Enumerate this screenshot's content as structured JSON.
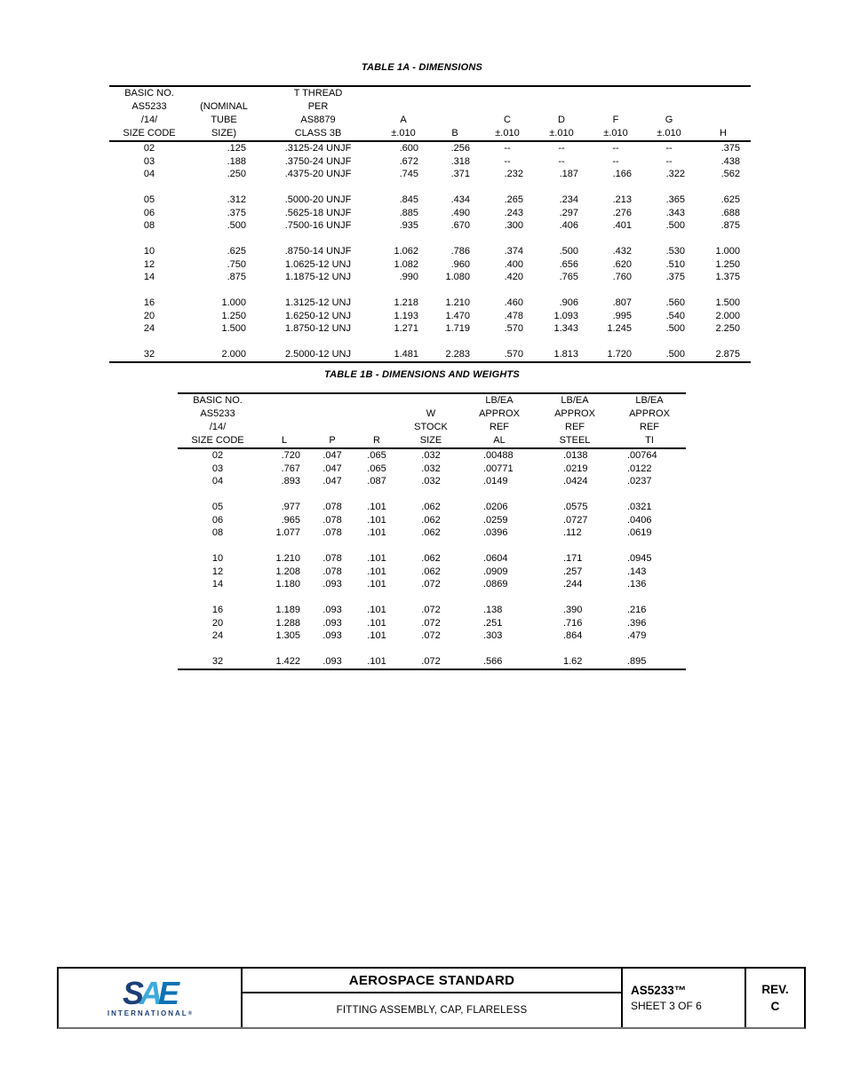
{
  "table1a": {
    "title": "TABLE 1A - DIMENSIONS",
    "headers": [
      [
        "BASIC NO.",
        "AS5233",
        "/14/",
        "SIZE CODE"
      ],
      [
        "(NOMINAL",
        "TUBE",
        "SIZE)"
      ],
      [
        "T THREAD",
        "PER",
        "AS8879",
        "CLASS 3B"
      ],
      [
        "A",
        "±.010"
      ],
      [
        "B"
      ],
      [
        "C",
        "±.010"
      ],
      [
        "D",
        "±.010"
      ],
      [
        "F",
        "±.010"
      ],
      [
        "G",
        "±.010"
      ],
      [
        "H"
      ]
    ],
    "rows": [
      [
        "02",
        ".125",
        ".3125-24 UNJF",
        ".600",
        ".256",
        "--",
        "--",
        "--",
        "--",
        ".375"
      ],
      [
        "03",
        ".188",
        ".3750-24 UNJF",
        ".672",
        ".318",
        "--",
        "--",
        "--",
        "--",
        ".438"
      ],
      [
        "04",
        ".250",
        ".4375-20 UNJF",
        ".745",
        ".371",
        ".232",
        ".187",
        ".166",
        ".322",
        ".562"
      ],
      [],
      [
        "05",
        ".312",
        ".5000-20 UNJF",
        ".845",
        ".434",
        ".265",
        ".234",
        ".213",
        ".365",
        ".625"
      ],
      [
        "06",
        ".375",
        ".5625-18 UNJF",
        ".885",
        ".490",
        ".243",
        ".297",
        ".276",
        ".343",
        ".688"
      ],
      [
        "08",
        ".500",
        ".7500-16 UNJF",
        ".935",
        ".670",
        ".300",
        ".406",
        ".401",
        ".500",
        ".875"
      ],
      [],
      [
        "10",
        ".625",
        ".8750-14 UNJF",
        "1.062",
        ".786",
        ".374",
        ".500",
        ".432",
        ".530",
        "1.000"
      ],
      [
        "12",
        ".750",
        "1.0625-12 UNJ",
        "1.082",
        ".960",
        ".400",
        ".656",
        ".620",
        ".510",
        "1.250"
      ],
      [
        "14",
        ".875",
        "1.1875-12 UNJ",
        ".990",
        "1.080",
        ".420",
        ".765",
        ".760",
        ".375",
        "1.375"
      ],
      [],
      [
        "16",
        "1.000",
        "1.3125-12 UNJ",
        "1.218",
        "1.210",
        ".460",
        ".906",
        ".807",
        ".560",
        "1.500"
      ],
      [
        "20",
        "1.250",
        "1.6250-12 UNJ",
        "1.193",
        "1.470",
        ".478",
        "1.093",
        ".995",
        ".540",
        "2.000"
      ],
      [
        "24",
        "1.500",
        "1.8750-12 UNJ",
        "1.271",
        "1.719",
        ".570",
        "1.343",
        "1.245",
        ".500",
        "2.250"
      ],
      [],
      [
        "32",
        "2.000",
        "2.5000-12 UNJ",
        "1.481",
        "2.283",
        ".570",
        "1.813",
        "1.720",
        ".500",
        "2.875"
      ]
    ]
  },
  "table1b": {
    "title": "TABLE 1B - DIMENSIONS AND WEIGHTS",
    "headers": [
      [
        "BASIC NO.",
        "AS5233",
        "/14/",
        "SIZE CODE"
      ],
      [
        "L"
      ],
      [
        "P"
      ],
      [
        "R"
      ],
      [
        "W",
        "STOCK",
        "SIZE"
      ],
      [
        "LB/EA",
        "APPROX",
        "REF",
        "AL"
      ],
      [
        "LB/EA",
        "APPROX",
        "REF",
        "STEEL"
      ],
      [
        "LB/EA",
        "APPROX",
        "REF",
        "TI"
      ]
    ],
    "rows": [
      [
        "02",
        ".720",
        ".047",
        ".065",
        ".032",
        ".00488",
        ".0138",
        ".00764"
      ],
      [
        "03",
        ".767",
        ".047",
        ".065",
        ".032",
        ".00771",
        ".0219",
        ".0122"
      ],
      [
        "04",
        ".893",
        ".047",
        ".087",
        ".032",
        ".0149",
        ".0424",
        ".0237"
      ],
      [],
      [
        "05",
        ".977",
        ".078",
        ".101",
        ".062",
        ".0206",
        ".0575",
        ".0321"
      ],
      [
        "06",
        ".965",
        ".078",
        ".101",
        ".062",
        ".0259",
        ".0727",
        ".0406"
      ],
      [
        "08",
        "1.077",
        ".078",
        ".101",
        ".062",
        ".0396",
        ".112",
        ".0619"
      ],
      [],
      [
        "10",
        "1.210",
        ".078",
        ".101",
        ".062",
        ".0604",
        ".171",
        ".0945"
      ],
      [
        "12",
        "1.208",
        ".078",
        ".101",
        ".062",
        ".0909",
        ".257",
        ".143"
      ],
      [
        "14",
        "1.180",
        ".093",
        ".101",
        ".072",
        ".0869",
        ".244",
        ".136"
      ],
      [],
      [
        "16",
        "1.189",
        ".093",
        ".101",
        ".072",
        ".138",
        ".390",
        ".216"
      ],
      [
        "20",
        "1.288",
        ".093",
        ".101",
        ".072",
        ".251",
        ".716",
        ".396"
      ],
      [
        "24",
        "1.305",
        ".093",
        ".101",
        ".072",
        ".303",
        ".864",
        ".479"
      ],
      [],
      [
        "32",
        "1.422",
        ".093",
        ".101",
        ".072",
        ".566",
        "1.62",
        ".895"
      ]
    ]
  },
  "footer": {
    "logo": {
      "s": "S",
      "a": "A",
      "e": "E",
      "subtext": "INTERNATIONAL",
      "reg": "®"
    },
    "doc_type": "AEROSPACE STANDARD",
    "doc_title": "FITTING ASSEMBLY, CAP, FLARELESS",
    "doc_number": "AS5233™",
    "sheet": "SHEET 3 OF 6",
    "rev_label": "REV.",
    "rev_value": "C",
    "colors": {
      "sae_dark": "#1c3f77",
      "sae_light": "#3fa9dc",
      "sae_mid": "#0d72b5"
    }
  }
}
